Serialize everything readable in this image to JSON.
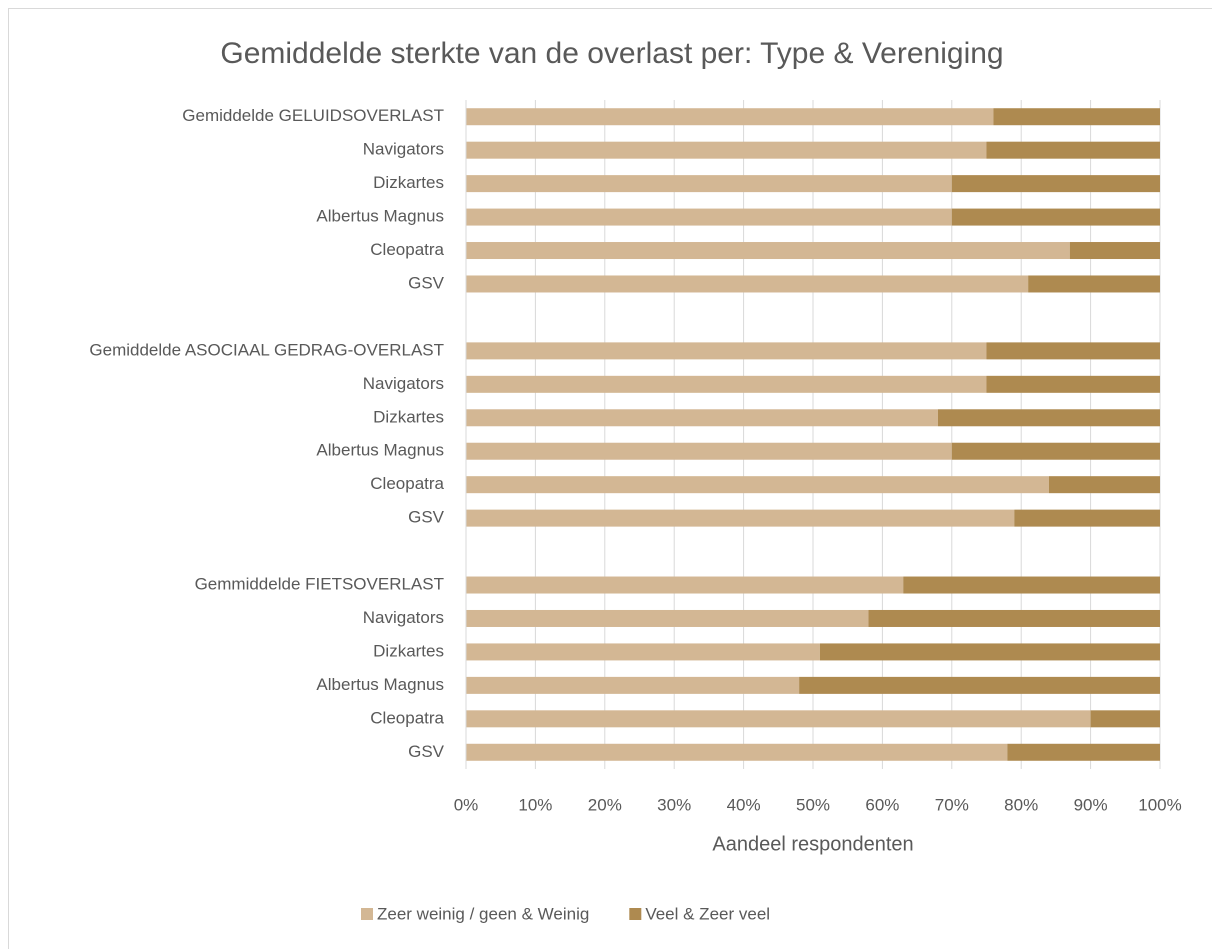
{
  "chart_data": {
    "type": "stacked_barh",
    "title": "Gemiddelde sterkte van de overlast per: Type & Vereniging",
    "xlabel": "Aandeel respondenten",
    "categories": [
      "Gemiddelde GELUIDSOVERLAST",
      "Navigators",
      "Dizkartes",
      "Albertus Magnus",
      "Cleopatra",
      "GSV",
      null,
      "Gemiddelde ASOCIAAL GEDRAG-OVERLAST",
      "Navigators",
      "Dizkartes",
      "Albertus Magnus",
      "Cleopatra",
      "GSV",
      null,
      "Gemmiddelde FIETSOVERLAST",
      "Navigators",
      "Dizkartes",
      "Albertus Magnus",
      "Cleopatra",
      "GSV"
    ],
    "series": [
      {
        "name": "Zeer weinig / geen & Weinig",
        "color": "#d3b794",
        "values": [
          76,
          75,
          70,
          70,
          87,
          81,
          null,
          75,
          75,
          68,
          70,
          84,
          79,
          null,
          63,
          58,
          51,
          48,
          90,
          78
        ]
      },
      {
        "name": "Veel & Zeer veel",
        "color": "#ae8a50",
        "values": [
          24,
          25,
          30,
          30,
          13,
          19,
          null,
          25,
          25,
          32,
          30,
          16,
          21,
          null,
          37,
          42,
          49,
          52,
          10,
          22
        ]
      }
    ],
    "xlim": [
      0,
      100
    ],
    "xticks": [
      {
        "value": 0,
        "label": "0%"
      },
      {
        "value": 10,
        "label": "10%"
      },
      {
        "value": 20,
        "label": "20%"
      },
      {
        "value": 30,
        "label": "30%"
      },
      {
        "value": 40,
        "label": "40%"
      },
      {
        "value": 50,
        "label": "50%"
      },
      {
        "value": 60,
        "label": "60%"
      },
      {
        "value": 70,
        "label": "70%"
      },
      {
        "value": 80,
        "label": "80%"
      },
      {
        "value": 90,
        "label": "90%"
      },
      {
        "value": 100,
        "label": "100%"
      }
    ],
    "grid": true,
    "legend": "bottom"
  }
}
